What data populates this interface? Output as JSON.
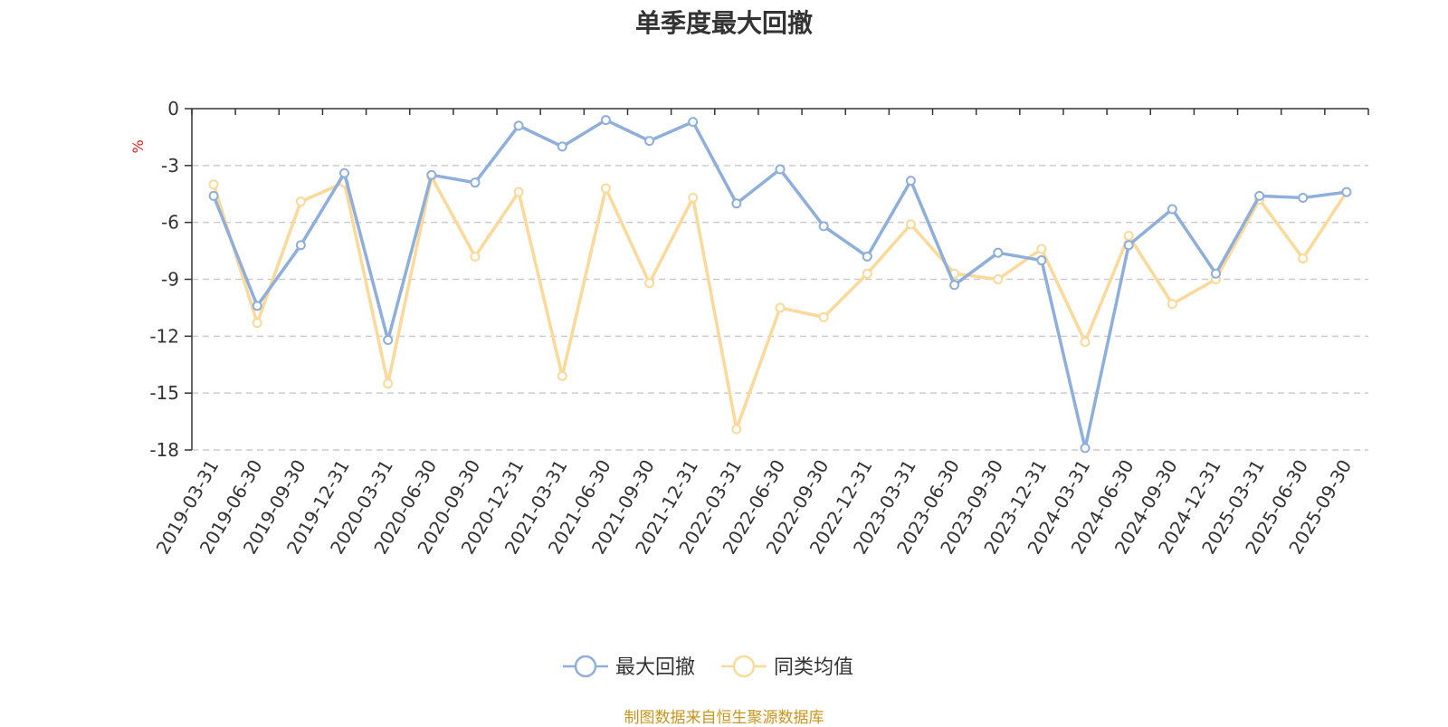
{
  "chart_data": {
    "type": "line",
    "title": "单季度最大回撤",
    "ylabel": "%",
    "ylim": [
      -18,
      0
    ],
    "yticks": [
      0,
      -3,
      -6,
      -9,
      -12,
      -15,
      -18
    ],
    "grid": true,
    "legend_position": "bottom",
    "categories": [
      "2019-03-31",
      "2019-06-30",
      "2019-09-30",
      "2019-12-31",
      "2020-03-31",
      "2020-06-30",
      "2020-09-30",
      "2020-12-31",
      "2021-03-31",
      "2021-06-30",
      "2021-09-30",
      "2021-12-31",
      "2022-03-31",
      "2022-06-30",
      "2022-09-30",
      "2022-12-31",
      "2023-03-31",
      "2023-06-30",
      "2023-09-30",
      "2023-12-31",
      "2024-03-31",
      "2024-06-30",
      "2024-09-30",
      "2024-12-31",
      "2025-03-31",
      "2025-06-30",
      "2025-09-30"
    ],
    "series": [
      {
        "name": "最大回撤",
        "color": "#8eaedb",
        "values": [
          -4.6,
          -10.4,
          -7.2,
          -3.4,
          -12.2,
          -3.5,
          -3.9,
          -0.9,
          -2.0,
          -0.6,
          -1.7,
          -0.7,
          -5.0,
          -3.2,
          -6.2,
          -7.8,
          -3.8,
          -9.3,
          -7.6,
          -8.0,
          -17.9,
          -7.2,
          -5.3,
          -8.7,
          -4.6,
          -4.7,
          -4.4
        ]
      },
      {
        "name": "同类均值",
        "color": "#fbd99a",
        "values": [
          -4.0,
          -11.3,
          -4.9,
          -3.9,
          -14.5,
          -3.6,
          -7.8,
          -4.4,
          -14.1,
          -4.2,
          -9.2,
          -4.7,
          -16.9,
          -10.5,
          -11.0,
          -8.7,
          -6.1,
          -8.7,
          -9.0,
          -7.4,
          -12.3,
          -6.7,
          -10.3,
          -9.0,
          -4.8,
          -7.9,
          -4.4
        ]
      }
    ]
  },
  "footer": "制图数据来自恒生聚源数据库"
}
